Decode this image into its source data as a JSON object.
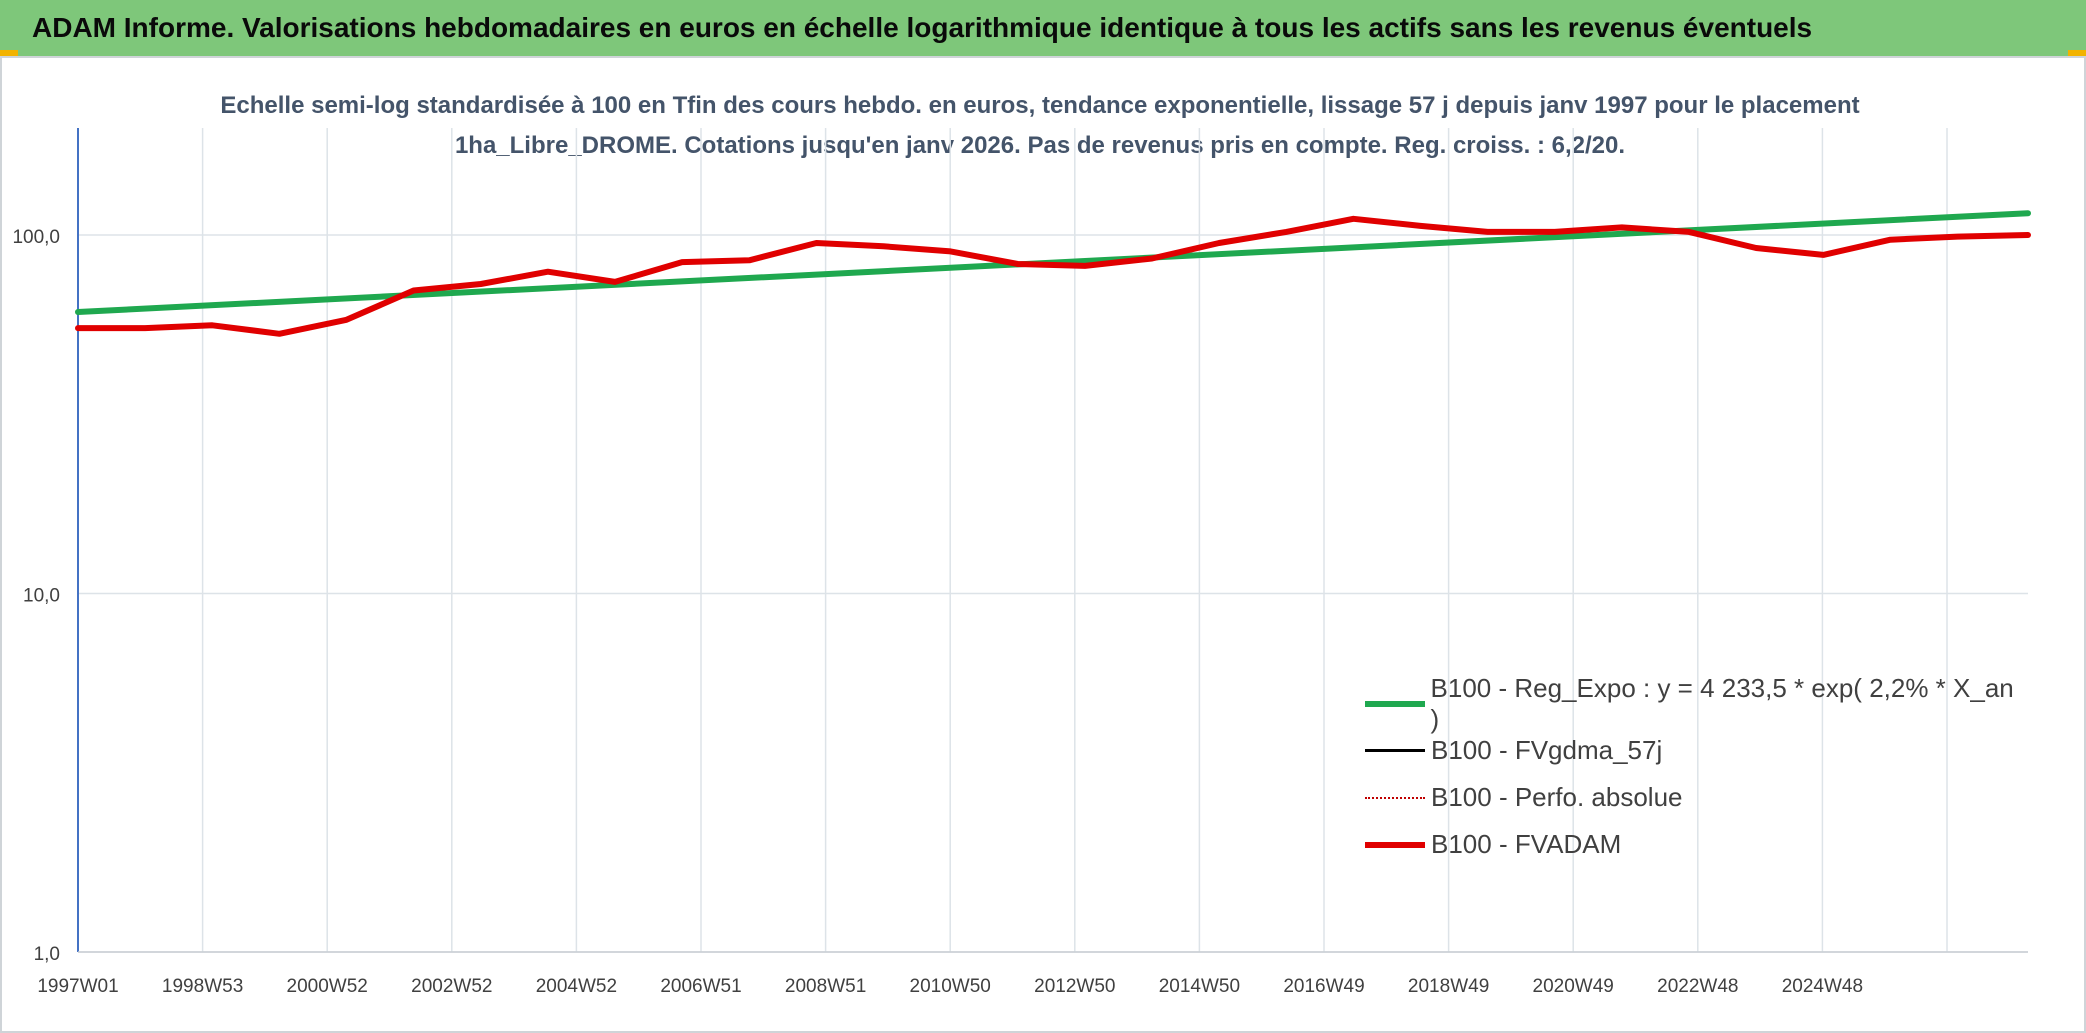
{
  "header": {
    "title": "ADAM Informe. Valorisations hebdomadaires en euros en échelle logarithmique identique à tous les actifs sans les revenus éventuels"
  },
  "chart_data": {
    "type": "line",
    "title": "Echelle semi-log standardisée à 100 en Tfin des cours hebdo. en euros, tendance exponentielle, lissage 57 j depuis janv 1997 pour le placement 1ha_Libre_DROME. Cotations jusqu'en janv 2026. Pas de revenus pris en compte. Reg. croiss. : 6,2/20.",
    "y_scale": "log",
    "ylim": [
      1,
      100
    ],
    "y_ticks": [
      "1,0",
      "10,0",
      "100,0"
    ],
    "x_range": [
      1997.0,
      2026.05
    ],
    "x_ticks": [
      "1997W01",
      "1998W53",
      "2000W52",
      "2002W52",
      "2004W52",
      "2006W51",
      "2008W51",
      "2010W50",
      "2012W50",
      "2014W50",
      "2016W49",
      "2018W49",
      "2020W49",
      "2022W48",
      "2024W48"
    ],
    "grid": true,
    "legend_position": "bottom-right",
    "series": [
      {
        "name": "B100 - Reg_Expo : y = 4 233,5 * exp( 2,2% *  X_an )",
        "color": "#1fa84f",
        "style": "solid",
        "x": [
          1997.0,
          2026.05
        ],
        "values": [
          61.0,
          115.0
        ]
      },
      {
        "name": "B100 - FVgdma_57j",
        "color": "#000000",
        "style": "solid",
        "x": [],
        "values": []
      },
      {
        "name": "B100 - Perfo. absolue",
        "color": "#c00000",
        "style": "dotted",
        "x": [],
        "values": []
      },
      {
        "name": "B100 - FVADAM",
        "color": "#e00000",
        "style": "solid",
        "x": [
          1997.0,
          1998.0,
          1999.0,
          2000.0,
          2001.0,
          2002.0,
          2003.0,
          2004.0,
          2005.0,
          2006.0,
          2007.0,
          2008.0,
          2009.0,
          2010.0,
          2011.0,
          2012.0,
          2013.0,
          2014.0,
          2015.0,
          2016.0,
          2017.0,
          2018.0,
          2019.0,
          2020.0,
          2021.0,
          2022.0,
          2023.0,
          2024.0,
          2025.0,
          2026.05
        ],
        "values": [
          55,
          55,
          56,
          53,
          58,
          70,
          73,
          79,
          74,
          84,
          85,
          95,
          93,
          90,
          83,
          82,
          86,
          95,
          102,
          111,
          106,
          102,
          102,
          105,
          102,
          92,
          88,
          97,
          99,
          100
        ]
      }
    ]
  }
}
